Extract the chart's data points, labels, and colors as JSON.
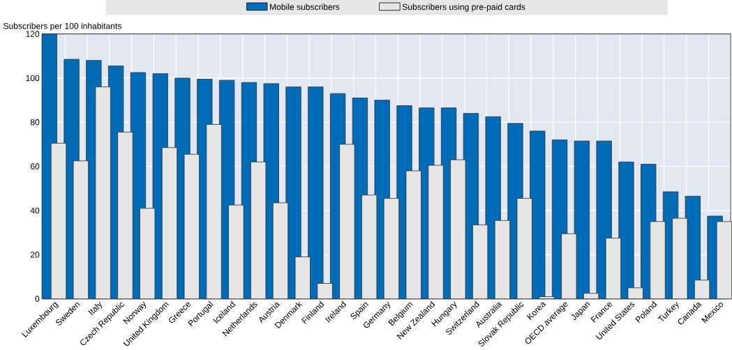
{
  "chart_data": {
    "type": "bar",
    "ylabel": "Subscribers per 100 inhabitants",
    "categories": [
      "Luxembourg",
      "Sweden",
      "Italy",
      "Czech Republic",
      "Norway",
      "United Kingdom",
      "Greece",
      "Portugal",
      "Iceland",
      "Netherlands",
      "Austria",
      "Denmark",
      "Finland",
      "Ireland",
      "Spain",
      "Germany",
      "Belgium",
      "New Zealand",
      "Hungary",
      "Switzerland",
      "Australia",
      "Slovak Republic",
      "Korea",
      "OECD average",
      "Japan",
      "France",
      "United States",
      "Poland",
      "Turkey",
      "Canada",
      "Mexico"
    ],
    "series": [
      {
        "name": "Mobile subscribers",
        "color": "#006bb6",
        "values": [
          120,
          108.5,
          108,
          105.5,
          102.5,
          102,
          100,
          99.5,
          99,
          98,
          97.5,
          96,
          96,
          93,
          91,
          90,
          87.5,
          86.5,
          86.5,
          84,
          82.5,
          79.5,
          76,
          72,
          71.5,
          71.5,
          62,
          61,
          48.5,
          46.5,
          37.5
        ]
      },
      {
        "name": "Subscribers using pre-paid cards",
        "color": "#e6e6e6",
        "values": [
          70.5,
          62.5,
          96,
          75.5,
          41,
          68.5,
          65.5,
          79,
          42.5,
          62,
          43.5,
          19,
          7,
          70,
          47,
          45.5,
          58,
          60.5,
          63,
          33.5,
          35.5,
          45.5,
          1,
          29.5,
          2.5,
          27.5,
          5,
          35,
          36.5,
          8.5,
          35
        ]
      }
    ],
    "ylim": [
      0,
      120
    ],
    "yticks": [
      0,
      20,
      40,
      60,
      80,
      100,
      120
    ],
    "grid": true,
    "legend": "top"
  }
}
